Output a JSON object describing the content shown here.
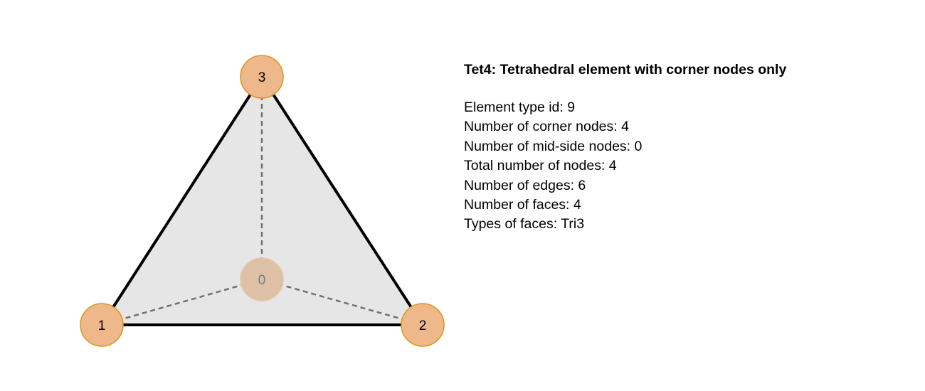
{
  "diagram": {
    "element_name": "Tet4",
    "colors": {
      "face_fill": "#e6e6e6",
      "edge": "#000000",
      "hidden_edge": "#707070",
      "node_fill": "#eeb88a",
      "node_stroke": "#d9951f",
      "hidden_node_fill": "#ddc0a6",
      "hidden_node_stroke": "#e3c7a8",
      "hidden_node_text": "#7a7a7a"
    },
    "nodes": [
      {
        "id": "0",
        "label": "0",
        "hidden": true
      },
      {
        "id": "1",
        "label": "1",
        "hidden": false
      },
      {
        "id": "2",
        "label": "2",
        "hidden": false
      },
      {
        "id": "3",
        "label": "3",
        "hidden": false
      }
    ],
    "edges": [
      {
        "from": "1",
        "to": "2",
        "hidden": false
      },
      {
        "from": "2",
        "to": "3",
        "hidden": false
      },
      {
        "from": "3",
        "to": "1",
        "hidden": false
      },
      {
        "from": "0",
        "to": "1",
        "hidden": true
      },
      {
        "from": "0",
        "to": "2",
        "hidden": true
      },
      {
        "from": "0",
        "to": "3",
        "hidden": true
      }
    ]
  },
  "info": {
    "title": "Tet4: Tetrahedral element with corner nodes only",
    "properties": [
      "Element type id: 9",
      "Number of corner nodes: 4",
      "Number of mid-side nodes: 0",
      "Total number of nodes: 4",
      "Number of edges: 6",
      "Number of faces: 4",
      "Types of faces: Tri3"
    ]
  }
}
